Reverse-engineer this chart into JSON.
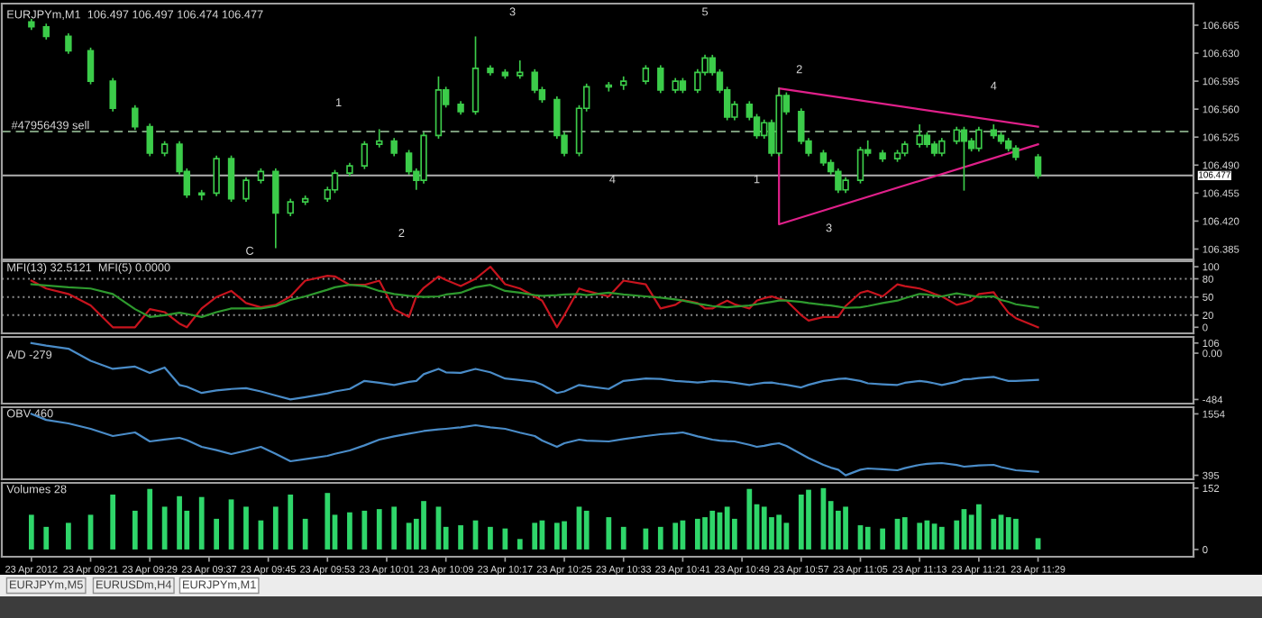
{
  "chart_data": [
    {
      "type": "candlestick",
      "title": "EURJPYm,M1  106.497 106.497 106.474 106.477",
      "color": "#3ccc4a",
      "tick_labels": "y",
      "x": [
        "2012-04-23T09:13",
        "2012-04-23T09:15",
        "2012-04-23T09:18",
        "2012-04-23T09:21",
        "2012-04-23T09:24",
        "2012-04-23T09:27",
        "2012-04-23T09:29",
        "2012-04-23T09:31",
        "2012-04-23T09:33",
        "2012-04-23T09:34",
        "2012-04-23T09:36",
        "2012-04-23T09:38",
        "2012-04-23T09:40",
        "2012-04-23T09:42",
        "2012-04-23T09:44",
        "2012-04-23T09:46",
        "2012-04-23T09:48",
        "2012-04-23T09:50",
        "2012-04-23T09:53",
        "2012-04-23T09:54",
        "2012-04-23T09:56",
        "2012-04-23T09:58",
        "2012-04-23T10:00",
        "2012-04-23T10:02",
        "2012-04-23T10:04",
        "2012-04-23T10:05",
        "2012-04-23T10:06",
        "2012-04-23T10:08",
        "2012-04-23T10:09",
        "2012-04-23T10:11",
        "2012-04-23T10:13",
        "2012-04-23T10:15",
        "2012-04-23T10:17",
        "2012-04-23T10:19",
        "2012-04-23T10:21",
        "2012-04-23T10:22",
        "2012-04-23T10:24",
        "2012-04-23T10:25",
        "2012-04-23T10:27",
        "2012-04-23T10:28",
        "2012-04-23T10:31",
        "2012-04-23T10:33",
        "2012-04-23T10:36",
        "2012-04-23T10:38",
        "2012-04-23T10:40",
        "2012-04-23T10:41",
        "2012-04-23T10:43",
        "2012-04-23T10:44",
        "2012-04-23T10:45",
        "2012-04-23T10:46",
        "2012-04-23T10:47",
        "2012-04-23T10:48",
        "2012-04-23T10:50",
        "2012-04-23T10:51",
        "2012-04-23T10:52",
        "2012-04-23T10:53",
        "2012-04-23T10:54",
        "2012-04-23T10:55",
        "2012-04-23T10:57",
        "2012-04-23T10:58",
        "2012-04-23T11:00",
        "2012-04-23T11:01",
        "2012-04-23T11:02",
        "2012-04-23T11:03",
        "2012-04-23T11:05",
        "2012-04-23T11:06",
        "2012-04-23T11:08",
        "2012-04-23T11:10",
        "2012-04-23T11:11",
        "2012-04-23T11:13",
        "2012-04-23T11:14",
        "2012-04-23T11:15",
        "2012-04-23T11:16",
        "2012-04-23T11:18",
        "2012-04-23T11:19",
        "2012-04-23T11:20",
        "2012-04-23T11:21",
        "2012-04-23T11:23",
        "2012-04-23T11:24",
        "2012-04-23T11:25",
        "2012-04-23T11:26",
        "2012-04-23T11:29"
      ],
      "ohlc": [
        [
          106.669,
          106.672,
          106.66,
          106.663
        ],
        [
          106.663,
          106.666,
          106.648,
          106.651
        ],
        [
          106.651,
          106.654,
          106.63,
          106.633
        ],
        [
          106.633,
          106.636,
          106.592,
          106.595
        ],
        [
          106.595,
          106.598,
          106.558,
          106.561
        ],
        [
          106.561,
          106.564,
          106.535,
          106.538
        ],
        [
          106.538,
          106.541,
          106.502,
          106.505
        ],
        [
          106.505,
          106.519,
          106.502,
          106.516
        ],
        [
          106.516,
          106.519,
          106.479,
          106.482
        ],
        [
          106.482,
          106.485,
          106.45,
          106.453
        ],
        [
          106.453,
          106.458,
          106.447,
          106.455
        ],
        [
          106.455,
          106.501,
          106.452,
          106.498
        ],
        [
          106.498,
          106.501,
          106.445,
          106.448
        ],
        [
          106.448,
          106.474,
          106.445,
          106.471
        ],
        [
          106.471,
          106.485,
          106.468,
          106.482
        ],
        [
          106.482,
          106.485,
          106.387,
          106.43
        ],
        [
          106.43,
          106.447,
          106.427,
          106.444
        ],
        [
          106.444,
          106.451,
          106.441,
          106.448
        ],
        [
          106.448,
          106.462,
          106.445,
          106.459
        ],
        [
          106.459,
          106.483,
          106.456,
          106.48
        ],
        [
          106.48,
          106.492,
          106.477,
          106.489
        ],
        [
          106.489,
          106.519,
          106.486,
          106.516
        ],
        [
          106.516,
          106.534,
          106.513,
          106.52
        ],
        [
          106.52,
          106.523,
          106.502,
          106.505
        ],
        [
          106.505,
          106.508,
          106.479,
          106.482
        ],
        [
          106.482,
          106.485,
          106.46,
          106.471
        ],
        [
          106.471,
          106.53,
          106.468,
          106.527
        ],
        [
          106.527,
          106.6,
          106.524,
          106.584
        ],
        [
          106.584,
          106.587,
          106.563,
          106.566
        ],
        [
          106.566,
          106.569,
          106.554,
          106.557
        ],
        [
          106.557,
          106.65,
          106.554,
          106.611
        ],
        [
          106.611,
          106.614,
          106.603,
          106.606
        ],
        [
          106.606,
          106.609,
          106.599,
          106.602
        ],
        [
          106.602,
          106.62,
          106.599,
          106.606
        ],
        [
          106.606,
          106.609,
          106.581,
          106.584
        ],
        [
          106.584,
          106.587,
          106.569,
          106.572
        ],
        [
          106.572,
          106.575,
          106.524,
          106.527
        ],
        [
          106.527,
          106.53,
          106.502,
          106.505
        ],
        [
          106.505,
          106.564,
          106.502,
          106.561
        ],
        [
          106.561,
          106.591,
          106.558,
          106.588
        ],
        [
          106.588,
          106.593,
          106.583,
          106.59
        ],
        [
          106.59,
          106.6,
          106.585,
          106.595
        ],
        [
          106.595,
          106.614,
          106.592,
          106.611
        ],
        [
          106.611,
          106.614,
          106.581,
          106.584
        ],
        [
          106.584,
          106.598,
          106.581,
          106.595
        ],
        [
          106.595,
          106.598,
          106.581,
          106.584
        ],
        [
          106.584,
          106.609,
          106.581,
          106.606
        ],
        [
          106.606,
          106.627,
          106.603,
          106.624
        ],
        [
          106.624,
          106.627,
          106.603,
          106.606
        ],
        [
          106.606,
          106.609,
          106.581,
          106.584
        ],
        [
          106.584,
          106.587,
          106.547,
          106.55
        ],
        [
          106.55,
          106.569,
          106.547,
          106.566
        ],
        [
          106.566,
          106.569,
          106.547,
          106.55
        ],
        [
          106.55,
          106.553,
          106.524,
          106.527
        ],
        [
          106.527,
          106.546,
          106.524,
          106.543
        ],
        [
          106.543,
          106.546,
          106.502,
          106.505
        ],
        [
          106.505,
          106.586,
          106.502,
          106.577
        ],
        [
          106.577,
          106.58,
          106.554,
          106.557
        ],
        [
          106.557,
          106.56,
          106.517,
          106.52
        ],
        [
          106.52,
          106.523,
          106.502,
          106.505
        ],
        [
          106.505,
          106.508,
          106.49,
          106.493
        ],
        [
          106.493,
          106.496,
          106.479,
          106.482
        ],
        [
          106.482,
          106.485,
          106.456,
          106.459
        ],
        [
          106.459,
          106.474,
          106.456,
          106.471
        ],
        [
          106.471,
          106.512,
          106.468,
          106.509
        ],
        [
          106.509,
          106.52,
          106.502,
          106.505
        ],
        [
          106.505,
          106.508,
          106.495,
          106.498
        ],
        [
          106.498,
          106.508,
          106.495,
          106.505
        ],
        [
          106.505,
          106.519,
          106.502,
          106.516
        ],
        [
          106.516,
          106.54,
          106.513,
          106.527
        ],
        [
          106.527,
          106.53,
          106.513,
          106.516
        ],
        [
          106.516,
          106.519,
          106.502,
          106.505
        ],
        [
          106.505,
          106.523,
          106.502,
          106.52
        ],
        [
          106.52,
          106.537,
          106.517,
          106.534
        ],
        [
          106.534,
          106.537,
          106.459,
          106.52
        ],
        [
          106.52,
          106.523,
          106.508,
          106.511
        ],
        [
          106.511,
          106.537,
          106.508,
          106.534
        ],
        [
          106.534,
          106.54,
          106.524,
          106.527
        ],
        [
          106.527,
          106.53,
          106.517,
          106.52
        ],
        [
          106.52,
          106.523,
          106.508,
          106.511
        ],
        [
          106.511,
          106.514,
          106.497,
          106.5
        ],
        [
          106.5,
          106.503,
          106.474,
          106.477
        ]
      ],
      "series": [
        {
          "type": "line",
          "color": "#e0208a",
          "x": [
            "2012-04-23T11:29",
            "2012-04-23T10:54",
            "2012-04-23T10:54",
            "2012-04-23T11:29"
          ],
          "values": [
            106.538,
            106.586,
            106.416,
            106.516
          ]
        }
      ],
      "xlim": [
        "2012-04-23T09:09",
        "2012-04-23T11:50"
      ],
      "ylim": [
        106.372,
        106.692
      ],
      "yticks": [
        106.665,
        {
          "value": 106.63,
          "label": "106.630"
        },
        106.595,
        {
          "value": 106.56,
          "label": "106.560"
        },
        106.525,
        {
          "value": 106.49,
          "label": "106.490"
        },
        106.455,
        {
          "value": 106.42,
          "label": "106.420"
        },
        106.385
      ],
      "ref_lines": [
        {
          "axis": "y",
          "value": 106.532,
          "label": "#47956439 sell",
          "color": "#7a9a7a",
          "line_style": "dashed"
        },
        {
          "axis": "y",
          "value": 106.477,
          "label": "106.477",
          "color": "#b0b0b0",
          "line_style": "solid"
        }
      ],
      "annotations": [
        "C",
        "1",
        "2",
        "3",
        "4",
        "5",
        "1",
        "2",
        "3",
        "4"
      ]
    },
    {
      "type": "line",
      "title": "MFI(13) 32.5121  MFI(5) 0.0000",
      "tick_labels": "y",
      "x": [
        "2012-04-23T09:13",
        "2012-04-23T09:15",
        "2012-04-23T09:18",
        "2012-04-23T09:21",
        "2012-04-23T09:24",
        "2012-04-23T09:27",
        "2012-04-23T09:29",
        "2012-04-23T09:31",
        "2012-04-23T09:33",
        "2012-04-23T09:34",
        "2012-04-23T09:36",
        "2012-04-23T09:38",
        "2012-04-23T09:40",
        "2012-04-23T09:42",
        "2012-04-23T09:44",
        "2012-04-23T09:46",
        "2012-04-23T09:48",
        "2012-04-23T09:50",
        "2012-04-23T09:53",
        "2012-04-23T09:54",
        "2012-04-23T09:56",
        "2012-04-23T09:58",
        "2012-04-23T10:00",
        "2012-04-23T10:02",
        "2012-04-23T10:04",
        "2012-04-23T10:05",
        "2012-04-23T10:06",
        "2012-04-23T10:08",
        "2012-04-23T10:09",
        "2012-04-23T10:11",
        "2012-04-23T10:13",
        "2012-04-23T10:15",
        "2012-04-23T10:17",
        "2012-04-23T10:19",
        "2012-04-23T10:21",
        "2012-04-23T10:22",
        "2012-04-23T10:24",
        "2012-04-23T10:25",
        "2012-04-23T10:27",
        "2012-04-23T10:28",
        "2012-04-23T10:31",
        "2012-04-23T10:33",
        "2012-04-23T10:36",
        "2012-04-23T10:38",
        "2012-04-23T10:40",
        "2012-04-23T10:41",
        "2012-04-23T10:43",
        "2012-04-23T10:44",
        "2012-04-23T10:45",
        "2012-04-23T10:46",
        "2012-04-23T10:47",
        "2012-04-23T10:48",
        "2012-04-23T10:50",
        "2012-04-23T10:51",
        "2012-04-23T10:52",
        "2012-04-23T10:53",
        "2012-04-23T10:54",
        "2012-04-23T10:55",
        "2012-04-23T10:57",
        "2012-04-23T10:58",
        "2012-04-23T11:00",
        "2012-04-23T11:01",
        "2012-04-23T11:02",
        "2012-04-23T11:03",
        "2012-04-23T11:05",
        "2012-04-23T11:06",
        "2012-04-23T11:08",
        "2012-04-23T11:10",
        "2012-04-23T11:11",
        "2012-04-23T11:13",
        "2012-04-23T11:14",
        "2012-04-23T11:15",
        "2012-04-23T11:16",
        "2012-04-23T11:18",
        "2012-04-23T11:19",
        "2012-04-23T11:20",
        "2012-04-23T11:21",
        "2012-04-23T11:23",
        "2012-04-23T11:24",
        "2012-04-23T11:25",
        "2012-04-23T11:26",
        "2012-04-23T11:29"
      ],
      "xlim": [
        "2012-04-23T09:09",
        "2012-04-23T11:50"
      ],
      "ylim": [
        -10,
        109
      ],
      "yticks": [
        0,
        20,
        50,
        80,
        100
      ],
      "series": [
        {
          "color": "#c8141e",
          "values": [
            77,
            64,
            55,
            36,
            0,
            0,
            30,
            25,
            6,
            0,
            31,
            50,
            60,
            40,
            33,
            37,
            51,
            77,
            85,
            84,
            70,
            70,
            77,
            30,
            17,
            51,
            65,
            84,
            78,
            68,
            80,
            100,
            71,
            64,
            51,
            44,
            0,
            20,
            64,
            60,
            51,
            77,
            71,
            31,
            37,
            45,
            40,
            31,
            31,
            38,
            44,
            38,
            31,
            44,
            48,
            51,
            47,
            44,
            20,
            11,
            17,
            17,
            17,
            35,
            57,
            60,
            51,
            71,
            68,
            64,
            60,
            55,
            51,
            37,
            40,
            44,
            55,
            58,
            40,
            24,
            15,
            0
          ]
        },
        {
          "color": "#2e9a2e",
          "values": [
            71,
            69,
            66,
            64,
            55,
            30,
            17,
            20,
            24,
            22,
            17,
            25,
            31,
            31,
            31,
            35,
            45,
            51,
            62,
            66,
            70,
            68,
            60,
            55,
            52,
            51,
            50,
            51,
            54,
            57,
            66,
            70,
            60,
            57,
            53,
            52,
            53,
            54,
            55,
            53,
            57,
            54,
            51,
            49,
            46,
            44,
            39,
            37,
            35,
            34,
            33,
            34,
            36,
            38,
            40,
            42,
            44,
            44,
            42,
            40,
            37,
            36,
            34,
            32,
            33,
            35,
            40,
            44,
            48,
            55,
            54,
            52,
            51,
            56,
            54,
            52,
            50,
            51,
            45,
            42,
            38,
            32.5
          ]
        }
      ],
      "ref_lines": [
        {
          "axis": "y",
          "value": 80,
          "color": "#909090",
          "line_style": "dotted"
        },
        {
          "axis": "y",
          "value": 50,
          "color": "#909090",
          "line_style": "dotted"
        },
        {
          "axis": "y",
          "value": 20,
          "color": "#909090",
          "line_style": "dotted"
        }
      ]
    },
    {
      "type": "line",
      "title": "A/D -279",
      "tick_labels": "y",
      "x": [
        "2012-04-23T09:13",
        "2012-04-23T09:15",
        "2012-04-23T09:18",
        "2012-04-23T09:21",
        "2012-04-23T09:24",
        "2012-04-23T09:27",
        "2012-04-23T09:29",
        "2012-04-23T09:31",
        "2012-04-23T09:33",
        "2012-04-23T09:34",
        "2012-04-23T09:36",
        "2012-04-23T09:38",
        "2012-04-23T09:40",
        "2012-04-23T09:42",
        "2012-04-23T09:44",
        "2012-04-23T09:46",
        "2012-04-23T09:48",
        "2012-04-23T09:50",
        "2012-04-23T09:53",
        "2012-04-23T09:54",
        "2012-04-23T09:56",
        "2012-04-23T09:58",
        "2012-04-23T10:00",
        "2012-04-23T10:02",
        "2012-04-23T10:04",
        "2012-04-23T10:05",
        "2012-04-23T10:06",
        "2012-04-23T10:08",
        "2012-04-23T10:09",
        "2012-04-23T10:11",
        "2012-04-23T10:13",
        "2012-04-23T10:15",
        "2012-04-23T10:17",
        "2012-04-23T10:19",
        "2012-04-23T10:21",
        "2012-04-23T10:22",
        "2012-04-23T10:24",
        "2012-04-23T10:25",
        "2012-04-23T10:27",
        "2012-04-23T10:28",
        "2012-04-23T10:31",
        "2012-04-23T10:33",
        "2012-04-23T10:36",
        "2012-04-23T10:38",
        "2012-04-23T10:40",
        "2012-04-23T10:41",
        "2012-04-23T10:43",
        "2012-04-23T10:44",
        "2012-04-23T10:45",
        "2012-04-23T10:46",
        "2012-04-23T10:47",
        "2012-04-23T10:48",
        "2012-04-23T10:50",
        "2012-04-23T10:51",
        "2012-04-23T10:52",
        "2012-04-23T10:53",
        "2012-04-23T10:54",
        "2012-04-23T10:55",
        "2012-04-23T10:57",
        "2012-04-23T10:58",
        "2012-04-23T11:00",
        "2012-04-23T11:01",
        "2012-04-23T11:02",
        "2012-04-23T11:03",
        "2012-04-23T11:05",
        "2012-04-23T11:06",
        "2012-04-23T11:08",
        "2012-04-23T11:10",
        "2012-04-23T11:11",
        "2012-04-23T11:13",
        "2012-04-23T11:14",
        "2012-04-23T11:15",
        "2012-04-23T11:16",
        "2012-04-23T11:18",
        "2012-04-23T11:19",
        "2012-04-23T11:20",
        "2012-04-23T11:21",
        "2012-04-23T11:23",
        "2012-04-23T11:24",
        "2012-04-23T11:25",
        "2012-04-23T11:26",
        "2012-04-23T11:29"
      ],
      "xlim": [
        "2012-04-23T09:09",
        "2012-04-23T11:50"
      ],
      "ylim": [
        -527,
        170
      ],
      "yticks": [
        106,
        {
          "value": 0,
          "label": "0.00"
        },
        -484
      ],
      "series": [
        {
          "color": "#4a8cc8",
          "values": [
            106,
            80,
            47,
            -80,
            -164,
            -140,
            -206,
            -150,
            -332,
            -350,
            -416,
            -390,
            -374,
            -365,
            -400,
            -442,
            -484,
            -460,
            -420,
            -400,
            -374,
            -290,
            -310,
            -332,
            -300,
            -290,
            -220,
            -164,
            -200,
            -206,
            -164,
            -200,
            -265,
            -280,
            -300,
            -330,
            -416,
            -400,
            -332,
            -345,
            -374,
            -290,
            -265,
            -270,
            -290,
            -295,
            -307,
            -300,
            -290,
            -295,
            -300,
            -310,
            -332,
            -320,
            -310,
            -307,
            -320,
            -330,
            -358,
            -330,
            -290,
            -280,
            -270,
            -265,
            -290,
            -315,
            -325,
            -332,
            -310,
            -290,
            -300,
            -315,
            -332,
            -300,
            -273,
            -270,
            -260,
            -248,
            -270,
            -290,
            -290,
            -279
          ]
        }
      ]
    },
    {
      "type": "line",
      "title": "OBV 460",
      "tick_labels": "y",
      "x": [
        "2012-04-23T09:13",
        "2012-04-23T09:15",
        "2012-04-23T09:18",
        "2012-04-23T09:21",
        "2012-04-23T09:24",
        "2012-04-23T09:27",
        "2012-04-23T09:29",
        "2012-04-23T09:31",
        "2012-04-23T09:33",
        "2012-04-23T09:34",
        "2012-04-23T09:36",
        "2012-04-23T09:38",
        "2012-04-23T09:40",
        "2012-04-23T09:42",
        "2012-04-23T09:44",
        "2012-04-23T09:46",
        "2012-04-23T09:48",
        "2012-04-23T09:50",
        "2012-04-23T09:53",
        "2012-04-23T09:54",
        "2012-04-23T09:56",
        "2012-04-23T09:58",
        "2012-04-23T10:00",
        "2012-04-23T10:02",
        "2012-04-23T10:04",
        "2012-04-23T10:05",
        "2012-04-23T10:06",
        "2012-04-23T10:08",
        "2012-04-23T10:09",
        "2012-04-23T10:11",
        "2012-04-23T10:13",
        "2012-04-23T10:15",
        "2012-04-23T10:17",
        "2012-04-23T10:19",
        "2012-04-23T10:21",
        "2012-04-23T10:22",
        "2012-04-23T10:24",
        "2012-04-23T10:25",
        "2012-04-23T10:27",
        "2012-04-23T10:28",
        "2012-04-23T10:31",
        "2012-04-23T10:33",
        "2012-04-23T10:36",
        "2012-04-23T10:38",
        "2012-04-23T10:40",
        "2012-04-23T10:41",
        "2012-04-23T10:43",
        "2012-04-23T10:44",
        "2012-04-23T10:45",
        "2012-04-23T10:46",
        "2012-04-23T10:47",
        "2012-04-23T10:48",
        "2012-04-23T10:50",
        "2012-04-23T10:51",
        "2012-04-23T10:52",
        "2012-04-23T10:53",
        "2012-04-23T10:54",
        "2012-04-23T10:55",
        "2012-04-23T10:57",
        "2012-04-23T10:58",
        "2012-04-23T11:00",
        "2012-04-23T11:01",
        "2012-04-23T11:02",
        "2012-04-23T11:03",
        "2012-04-23T11:05",
        "2012-04-23T11:06",
        "2012-04-23T11:08",
        "2012-04-23T11:10",
        "2012-04-23T11:11",
        "2012-04-23T11:13",
        "2012-04-23T11:14",
        "2012-04-23T11:15",
        "2012-04-23T11:16",
        "2012-04-23T11:18",
        "2012-04-23T11:19",
        "2012-04-23T11:20",
        "2012-04-23T11:21",
        "2012-04-23T11:23",
        "2012-04-23T11:24",
        "2012-04-23T11:25",
        "2012-04-23T11:26",
        "2012-04-23T11:29"
      ],
      "xlim": [
        "2012-04-23T09:09",
        "2012-04-23T11:50"
      ],
      "ylim": [
        320,
        1680
      ],
      "yticks": [
        1554,
        395
      ],
      "series": [
        {
          "color": "#4a8cc8",
          "values": [
            1554,
            1440,
            1374,
            1272,
            1136,
            1204,
            1034,
            1070,
            1102,
            1060,
            932,
            870,
            796,
            860,
            932,
            800,
            660,
            700,
            762,
            800,
            864,
            960,
            1068,
            1130,
            1180,
            1204,
            1230,
            1260,
            1272,
            1300,
            1340,
            1300,
            1272,
            1200,
            1136,
            1050,
            932,
            1000,
            1068,
            1050,
            1034,
            1080,
            1136,
            1170,
            1190,
            1204,
            1130,
            1100,
            1068,
            1050,
            1040,
            1034,
            970,
            932,
            950,
            980,
            1000,
            950,
            796,
            720,
            592,
            540,
            500,
            395,
            500,
            524,
            510,
            490,
            530,
            592,
            610,
            620,
            626,
            590,
            558,
            570,
            580,
            592,
            550,
            520,
            490,
            460
          ]
        }
      ]
    },
    {
      "type": "bar",
      "title": "Volumes 28",
      "color": "#2fd66a",
      "x": [
        "2012-04-23T09:13",
        "2012-04-23T09:15",
        "2012-04-23T09:18",
        "2012-04-23T09:21",
        "2012-04-23T09:24",
        "2012-04-23T09:27",
        "2012-04-23T09:29",
        "2012-04-23T09:31",
        "2012-04-23T09:33",
        "2012-04-23T09:34",
        "2012-04-23T09:36",
        "2012-04-23T09:38",
        "2012-04-23T09:40",
        "2012-04-23T09:42",
        "2012-04-23T09:44",
        "2012-04-23T09:46",
        "2012-04-23T09:48",
        "2012-04-23T09:50",
        "2012-04-23T09:53",
        "2012-04-23T09:54",
        "2012-04-23T09:56",
        "2012-04-23T09:58",
        "2012-04-23T10:00",
        "2012-04-23T10:02",
        "2012-04-23T10:04",
        "2012-04-23T10:05",
        "2012-04-23T10:06",
        "2012-04-23T10:08",
        "2012-04-23T10:09",
        "2012-04-23T10:11",
        "2012-04-23T10:13",
        "2012-04-23T10:15",
        "2012-04-23T10:17",
        "2012-04-23T10:19",
        "2012-04-23T10:21",
        "2012-04-23T10:22",
        "2012-04-23T10:24",
        "2012-04-23T10:25",
        "2012-04-23T10:27",
        "2012-04-23T10:28",
        "2012-04-23T10:31",
        "2012-04-23T10:33",
        "2012-04-23T10:36",
        "2012-04-23T10:38",
        "2012-04-23T10:40",
        "2012-04-23T10:41",
        "2012-04-23T10:43",
        "2012-04-23T10:44",
        "2012-04-23T10:45",
        "2012-04-23T10:46",
        "2012-04-23T10:47",
        "2012-04-23T10:48",
        "2012-04-23T10:50",
        "2012-04-23T10:51",
        "2012-04-23T10:52",
        "2012-04-23T10:53",
        "2012-04-23T10:54",
        "2012-04-23T10:55",
        "2012-04-23T10:57",
        "2012-04-23T10:58",
        "2012-04-23T11:00",
        "2012-04-23T11:01",
        "2012-04-23T11:02",
        "2012-04-23T11:03",
        "2012-04-23T11:05",
        "2012-04-23T11:06",
        "2012-04-23T11:08",
        "2012-04-23T11:10",
        "2012-04-23T11:11",
        "2012-04-23T11:13",
        "2012-04-23T11:14",
        "2012-04-23T11:15",
        "2012-04-23T11:16",
        "2012-04-23T11:18",
        "2012-04-23T11:19",
        "2012-04-23T11:20",
        "2012-04-23T11:21",
        "2012-04-23T11:23",
        "2012-04-23T11:24",
        "2012-04-23T11:25",
        "2012-04-23T11:26",
        "2012-04-23T11:29"
      ],
      "xlim": [
        "2012-04-23T09:09",
        "2012-04-23T11:50"
      ],
      "ylim": [
        -18,
        165
      ],
      "yticks": [
        152,
        0
      ],
      "values": [
        86,
        56,
        66,
        86,
        136,
        96,
        150,
        106,
        132,
        96,
        130,
        76,
        124,
        106,
        72,
        106,
        136,
        76,
        140,
        86,
        92,
        96,
        100,
        106,
        66,
        76,
        120,
        106,
        56,
        60,
        72,
        56,
        52,
        26,
        66,
        72,
        66,
        70,
        106,
        96,
        80,
        56,
        52,
        56,
        66,
        72,
        76,
        80,
        96,
        92,
        106,
        76,
        150,
        112,
        106,
        80,
        86,
        66,
        136,
        148,
        152,
        120,
        96,
        106,
        60,
        56,
        52,
        76,
        80,
        66,
        72,
        64,
        56,
        72,
        100,
        86,
        112,
        76,
        86,
        80,
        76,
        28
      ],
      "xticks": [
        {
          "value": "2012-04-23T09:13",
          "label": "23 Apr 2012"
        },
        {
          "value": "2012-04-23T09:21",
          "label": "23 Apr 09:21"
        },
        {
          "value": "2012-04-23T09:29",
          "label": "23 Apr 09:29"
        },
        {
          "value": "2012-04-23T09:37",
          "label": "23 Apr 09:37"
        },
        {
          "value": "2012-04-23T09:45",
          "label": "23 Apr 09:45"
        },
        {
          "value": "2012-04-23T09:53",
          "label": "23 Apr 09:53"
        },
        {
          "value": "2012-04-23T10:01",
          "label": "23 Apr 10:01"
        },
        {
          "value": "2012-04-23T10:09",
          "label": "23 Apr 10:09"
        },
        {
          "value": "2012-04-23T10:17",
          "label": "23 Apr 10:17"
        },
        {
          "value": "2012-04-23T10:25",
          "label": "23 Apr 10:25"
        },
        {
          "value": "2012-04-23T10:33",
          "label": "23 Apr 10:33"
        },
        {
          "value": "2012-04-23T10:41",
          "label": "23 Apr 10:41"
        },
        {
          "value": "2012-04-23T10:49",
          "label": "23 Apr 10:49"
        },
        {
          "value": "2012-04-23T10:57",
          "label": "23 Apr 10:57"
        },
        {
          "value": "2012-04-23T11:05",
          "label": "23 Apr 11:05"
        },
        {
          "value": "2012-04-23T11:13",
          "label": "23 Apr 11:13"
        },
        {
          "value": "2012-04-23T11:21",
          "label": "23 Apr 11:21"
        },
        {
          "value": "2012-04-23T11:29",
          "label": "23 Apr 11:29"
        }
      ],
      "annotations": [
        "EURJPYm,M5",
        "EURUSDm,H4",
        "EURJPYm,M1"
      ]
    }
  ]
}
